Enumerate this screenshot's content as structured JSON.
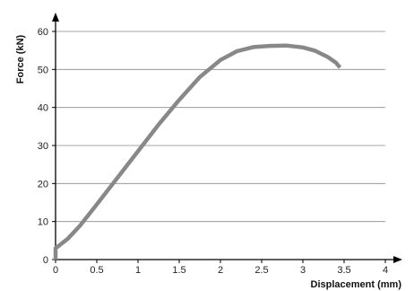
{
  "chart_data": {
    "type": "line",
    "title": "",
    "xlabel": "Displacement (mm)",
    "ylabel": "Force (kN)",
    "xlim": [
      0,
      4
    ],
    "ylim": [
      0,
      60
    ],
    "x_ticks": [
      "0",
      "0.5",
      "1",
      "1.5",
      "2",
      "2.5",
      "3",
      "3.5",
      "4"
    ],
    "y_ticks": [
      "0",
      "10",
      "20",
      "30",
      "40",
      "50",
      "60"
    ],
    "grid": "horizontal",
    "legend": "none",
    "series": [
      {
        "color": "#888888",
        "x": [
          0,
          0,
          0.05,
          0.15,
          0.3,
          0.5,
          0.75,
          1.0,
          1.25,
          1.5,
          1.75,
          2.0,
          2.2,
          2.4,
          2.6,
          2.8,
          3.0,
          3.15,
          3.3,
          3.4,
          3.45
        ],
        "y": [
          0,
          3,
          3.8,
          5.5,
          9,
          14.5,
          21.5,
          28.5,
          35.5,
          42.0,
          48.0,
          52.5,
          54.8,
          55.9,
          56.2,
          56.3,
          55.8,
          54.9,
          53.3,
          51.8,
          50.5
        ]
      }
    ]
  }
}
